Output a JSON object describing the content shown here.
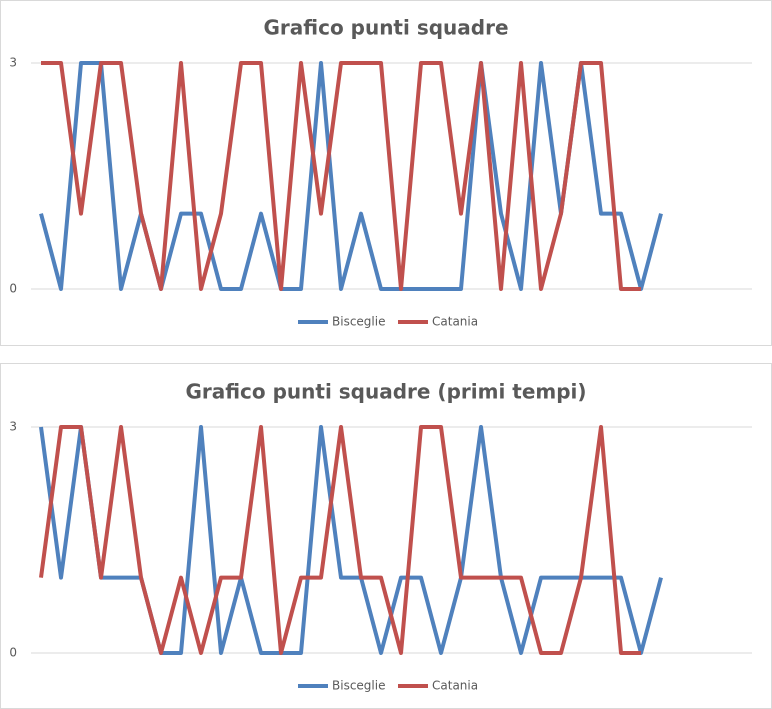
{
  "chart_data": [
    {
      "type": "line",
      "title": "Grafico punti squadre",
      "categories": [
        null,
        null,
        null,
        null,
        null,
        null,
        null,
        null,
        null,
        null,
        null,
        null,
        null,
        null,
        null,
        null,
        null,
        null,
        null,
        null,
        null,
        null,
        null,
        null,
        null,
        null,
        null,
        null,
        null,
        null,
        null,
        null
      ],
      "series": [
        {
          "name": "Bisceglie",
          "color": "#4f81bd",
          "values": [
            1,
            0,
            3,
            3,
            0,
            1,
            0,
            1,
            1,
            0,
            0,
            1,
            0,
            0,
            3,
            0,
            1,
            0,
            0,
            0,
            0,
            0,
            3,
            1,
            0,
            3,
            1,
            3,
            1,
            1,
            0,
            1
          ]
        },
        {
          "name": "Catania",
          "color": "#c0504d",
          "values": [
            3,
            3,
            1,
            3,
            3,
            1,
            0,
            3,
            0,
            1,
            3,
            3,
            0,
            3,
            1,
            3,
            3,
            3,
            0,
            3,
            3,
            1,
            3,
            0,
            3,
            0,
            1,
            3,
            3,
            0,
            0,
            null
          ]
        }
      ],
      "ylim": [
        0,
        3
      ],
      "yticks": [
        0,
        3
      ],
      "grid": true,
      "legend": "bottom"
    },
    {
      "type": "line",
      "title": "Grafico punti squadre (primi tempi)",
      "categories": [
        null,
        null,
        null,
        null,
        null,
        null,
        null,
        null,
        null,
        null,
        null,
        null,
        null,
        null,
        null,
        null,
        null,
        null,
        null,
        null,
        null,
        null,
        null,
        null,
        null,
        null,
        null,
        null,
        null,
        null,
        null,
        null
      ],
      "series": [
        {
          "name": "Bisceglie",
          "color": "#4f81bd",
          "values": [
            3,
            1,
            3,
            1,
            1,
            1,
            0,
            0,
            3,
            0,
            1,
            0,
            0,
            0,
            3,
            1,
            1,
            0,
            1,
            1,
            0,
            1,
            3,
            1,
            0,
            1,
            1,
            1,
            1,
            1,
            0,
            1
          ]
        },
        {
          "name": "Catania",
          "color": "#c0504d",
          "values": [
            1,
            3,
            3,
            1,
            3,
            1,
            0,
            1,
            0,
            1,
            1,
            3,
            0,
            1,
            1,
            3,
            1,
            1,
            0,
            3,
            3,
            1,
            1,
            1,
            1,
            0,
            0,
            1,
            3,
            0,
            0,
            null
          ]
        }
      ],
      "ylim": [
        0,
        3
      ],
      "yticks": [
        0,
        3
      ],
      "grid": true,
      "legend": "bottom"
    }
  ]
}
